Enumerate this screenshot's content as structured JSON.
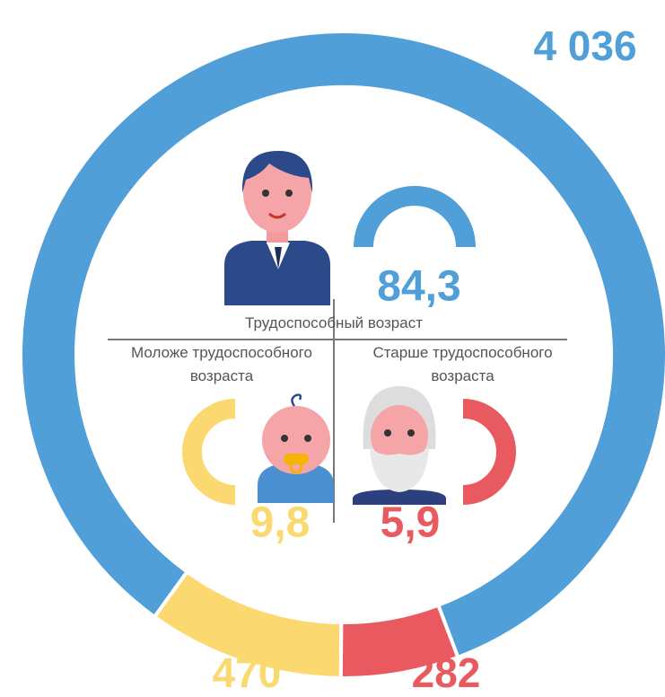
{
  "chart_data": {
    "type": "donut",
    "categories": [
      "Трудоспособный возраст",
      "Моложе трудоспособного возраста",
      "Старше трудоспособного возраста"
    ],
    "values": [
      4036,
      470,
      282
    ],
    "value_labels": [
      "4 036",
      "470",
      "282"
    ],
    "shares": [
      84.3,
      9.8,
      5.9
    ],
    "share_labels": [
      "84,3",
      "9,8",
      "5,9"
    ],
    "colors": [
      "#519fd9",
      "#fcd970",
      "#e85a5f"
    ]
  }
}
